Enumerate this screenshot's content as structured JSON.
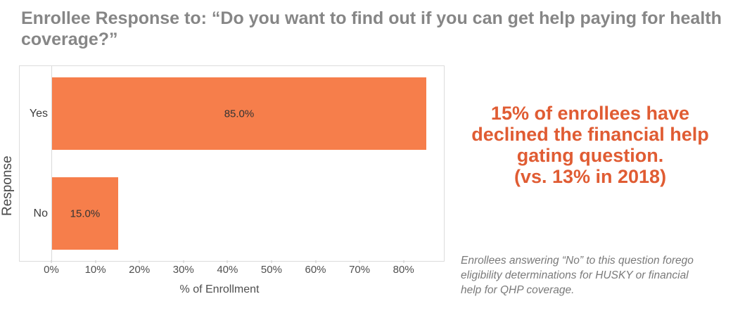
{
  "title": "Enrollee Response to: “Do you want to find out if you can get help paying for health coverage?”",
  "chart_data": {
    "type": "bar",
    "orientation": "horizontal",
    "categories": [
      "Yes",
      "No"
    ],
    "values": [
      85.0,
      15.0
    ],
    "value_labels": [
      "85.0%",
      "15.0%"
    ],
    "xlabel": "% of Enrollment",
    "ylabel": "Response",
    "xlim": [
      0,
      89
    ],
    "x_tick_labels": [
      "0%",
      "10%",
      "20%",
      "30%",
      "40%",
      "50%",
      "60%",
      "70%",
      "80%"
    ],
    "x_tick_values": [
      0,
      10,
      20,
      30,
      40,
      50,
      60,
      70,
      80
    ],
    "bar_color": "#f67e4b",
    "grid": false,
    "legend": "none"
  },
  "callout": {
    "color": "#e05c33",
    "lines": {
      "l1": "15% of enrollees have",
      "l2": "declined the financial help",
      "l3": "gating question.",
      "l4": "(vs. 13% in 2018)"
    }
  },
  "footnote": {
    "lines": {
      "l1": "Enrollees answering “No” to this question forego",
      "l2": "eligibility determinations for HUSKY or financial",
      "l3": "help for QHP coverage."
    }
  }
}
